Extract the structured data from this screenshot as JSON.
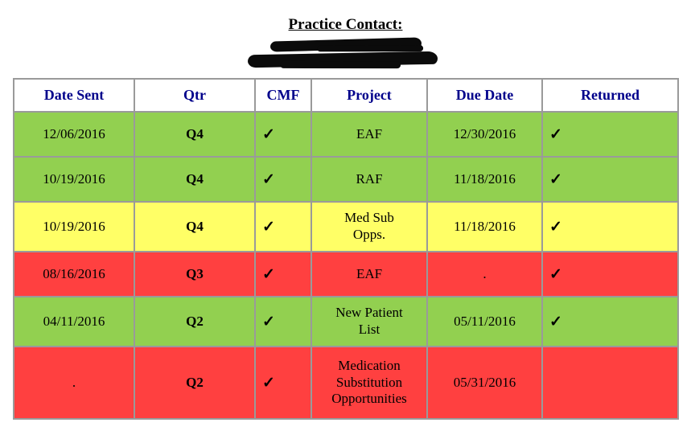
{
  "header": {
    "title": "Practice Contact:",
    "redacted_line_count": 2
  },
  "colors": {
    "green": "#92d050",
    "yellow": "#ffff66",
    "red": "#ff4040",
    "border_gray": "#9a9a9a",
    "header_text_navy": "#00008b"
  },
  "table": {
    "columns": [
      {
        "label": "Date Sent"
      },
      {
        "label": "Qtr"
      },
      {
        "label": "CMF"
      },
      {
        "label": "Project"
      },
      {
        "label": "Due Date"
      },
      {
        "label": "Returned"
      }
    ],
    "rows": [
      {
        "color": "green",
        "date_sent": "12/06/2016",
        "qtr": "Q4",
        "cmf": "✓",
        "project": "EAF",
        "due_date": "12/30/2016",
        "returned": "✓"
      },
      {
        "color": "green",
        "date_sent": "10/19/2016",
        "qtr": "Q4",
        "cmf": "✓",
        "project": "RAF",
        "due_date": "11/18/2016",
        "returned": "✓"
      },
      {
        "color": "yellow",
        "date_sent": "10/19/2016",
        "qtr": "Q4",
        "cmf": "✓",
        "project": "Med Sub\nOpps.",
        "due_date": "11/18/2016",
        "returned": "✓"
      },
      {
        "color": "red",
        "date_sent": "08/16/2016",
        "qtr": "Q3",
        "cmf": "✓",
        "project": "EAF",
        "due_date": ".",
        "returned": "✓"
      },
      {
        "color": "green",
        "date_sent": "04/11/2016",
        "qtr": "Q2",
        "cmf": "✓",
        "project": "New Patient\nList",
        "due_date": "05/11/2016",
        "returned": "✓"
      },
      {
        "color": "red",
        "date_sent": ".",
        "qtr": "Q2",
        "cmf": "✓",
        "project": "Medication\nSubstitution\nOpportunities",
        "due_date": "05/31/2016",
        "returned": ""
      }
    ]
  }
}
